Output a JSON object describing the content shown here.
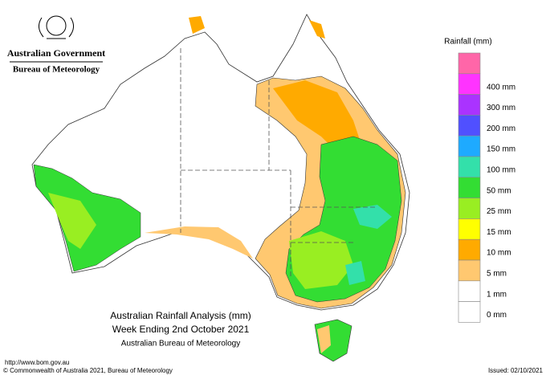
{
  "header": {
    "government": "Australian Government",
    "agency": "Bureau of Meteorology"
  },
  "title": {
    "line1": "Australian Rainfall Analysis (mm)",
    "line2": "Week Ending 2nd October 2021",
    "line3": "Australian Bureau of Meteorology"
  },
  "legend": {
    "title": "Rainfall (mm)",
    "items": [
      {
        "label": null,
        "color": "#ff66a8"
      },
      {
        "label": "400 mm",
        "color": "#ff33ff"
      },
      {
        "label": "300 mm",
        "color": "#aa33ff"
      },
      {
        "label": "200 mm",
        "color": "#5050ff"
      },
      {
        "label": "150 mm",
        "color": "#1eaaff"
      },
      {
        "label": "100 mm",
        "color": "#33e0aa"
      },
      {
        "label": "50 mm",
        "color": "#33dd33"
      },
      {
        "label": "25 mm",
        "color": "#99ee22"
      },
      {
        "label": "15 mm",
        "color": "#ffff00"
      },
      {
        "label": "10 mm",
        "color": "#ffaa00"
      },
      {
        "label": "5 mm",
        "color": "#ffc870"
      },
      {
        "label": "1 mm",
        "color": "#ffffff"
      },
      {
        "label": "0 mm",
        "color": "#ffffff"
      }
    ]
  },
  "footer": {
    "url": "http://www.bom.gov.au",
    "copyright": "© Commonwealth of Australia 2021, Bureau of Meteorology",
    "issued": "Issued: 02/10/2021"
  }
}
